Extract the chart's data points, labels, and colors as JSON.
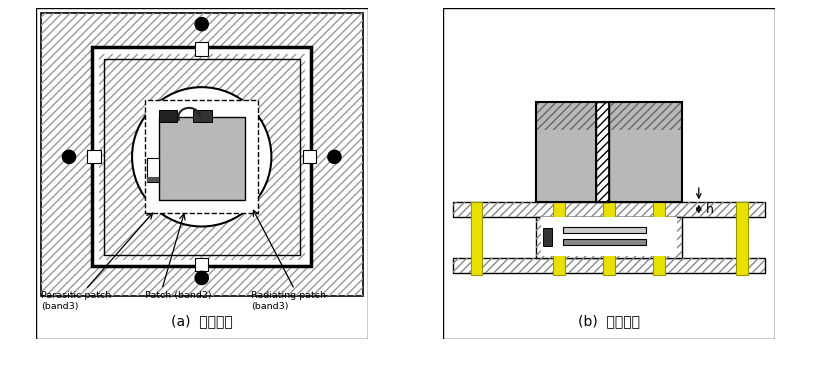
{
  "fig_width": 8.15,
  "fig_height": 3.77,
  "dpi": 100,
  "bg_color": "#ffffff",
  "gray_color": "#b8b8b8",
  "dark_gray": "#707070",
  "yellow_color": "#e8e000",
  "caption_a": "(a)  상단구조",
  "caption_b": "(b)  측면구조",
  "label_parasitic": "Parasitic patch\n(band3)",
  "label_patch": "Patch (band2)",
  "label_radiating": "Radiating patch\n(band3)",
  "label_h": "h"
}
